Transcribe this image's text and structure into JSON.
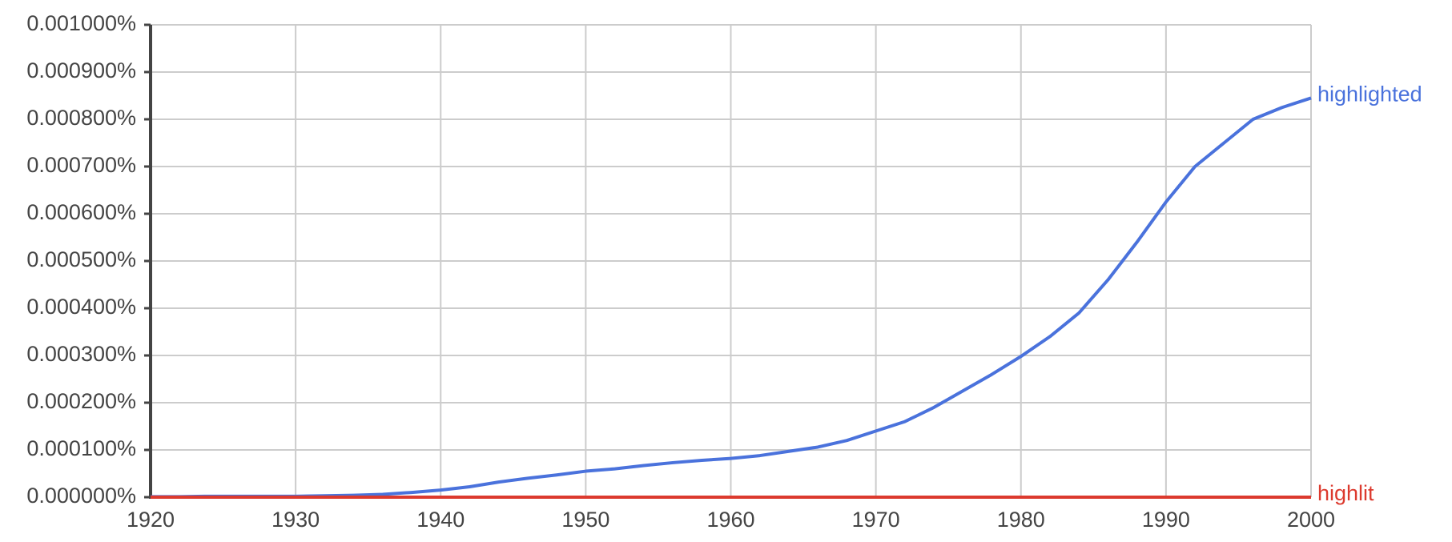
{
  "chart_data": {
    "type": "line",
    "x": [
      1920,
      1922,
      1924,
      1926,
      1928,
      1930,
      1932,
      1934,
      1936,
      1938,
      1940,
      1942,
      1944,
      1946,
      1948,
      1950,
      1952,
      1954,
      1956,
      1958,
      1960,
      1962,
      1964,
      1966,
      1968,
      1970,
      1972,
      1974,
      1976,
      1978,
      1980,
      1982,
      1984,
      1986,
      1988,
      1990,
      1992,
      1994,
      1996,
      1998,
      2000
    ],
    "series": [
      {
        "name": "highlighted",
        "color": "#4a72dc",
        "values": [
          1e-06,
          1e-06,
          2e-06,
          2e-06,
          2e-06,
          2e-06,
          3e-06,
          4e-06,
          6e-06,
          1e-05,
          1.5e-05,
          2.2e-05,
          3.2e-05,
          4e-05,
          4.7e-05,
          5.5e-05,
          6e-05,
          6.7e-05,
          7.3e-05,
          7.8e-05,
          8.2e-05,
          8.8e-05,
          9.7e-05,
          0.000106,
          0.00012,
          0.00014,
          0.00016,
          0.00019,
          0.000225,
          0.00026,
          0.000298,
          0.00034,
          0.00039,
          0.00046,
          0.00054,
          0.000625,
          0.0007,
          0.00075,
          0.0008,
          0.000825,
          0.000845
        ]
      },
      {
        "name": "highlit",
        "color": "#dc3a2e",
        "values": [
          0,
          0,
          0,
          0,
          0,
          0,
          0,
          0,
          0,
          0,
          0,
          0,
          0,
          0,
          0,
          0,
          0,
          0,
          0,
          0,
          0,
          0,
          0,
          0,
          0,
          0,
          0,
          0,
          0,
          0,
          0,
          0,
          0,
          0,
          0,
          0,
          0,
          0,
          0,
          0,
          0
        ]
      }
    ],
    "xlim": [
      1920,
      2000
    ],
    "xticks": [
      1920,
      1930,
      1940,
      1950,
      1960,
      1970,
      1980,
      1990,
      2000
    ],
    "ylim": [
      0,
      0.001
    ],
    "yticks": [
      {
        "value": 0,
        "label": "0.000000%"
      },
      {
        "value": 0.0001,
        "label": "0.000100%"
      },
      {
        "value": 0.0002,
        "label": "0.000200%"
      },
      {
        "value": 0.0003,
        "label": "0.000300%"
      },
      {
        "value": 0.0004,
        "label": "0.000400%"
      },
      {
        "value": 0.0005,
        "label": "0.000500%"
      },
      {
        "value": 0.0006,
        "label": "0.000600%"
      },
      {
        "value": 0.0007,
        "label": "0.000700%"
      },
      {
        "value": 0.0008,
        "label": "0.000800%"
      },
      {
        "value": 0.0009,
        "label": "0.000900%"
      },
      {
        "value": 0.001,
        "label": "0.001000%"
      }
    ],
    "grid": true
  }
}
